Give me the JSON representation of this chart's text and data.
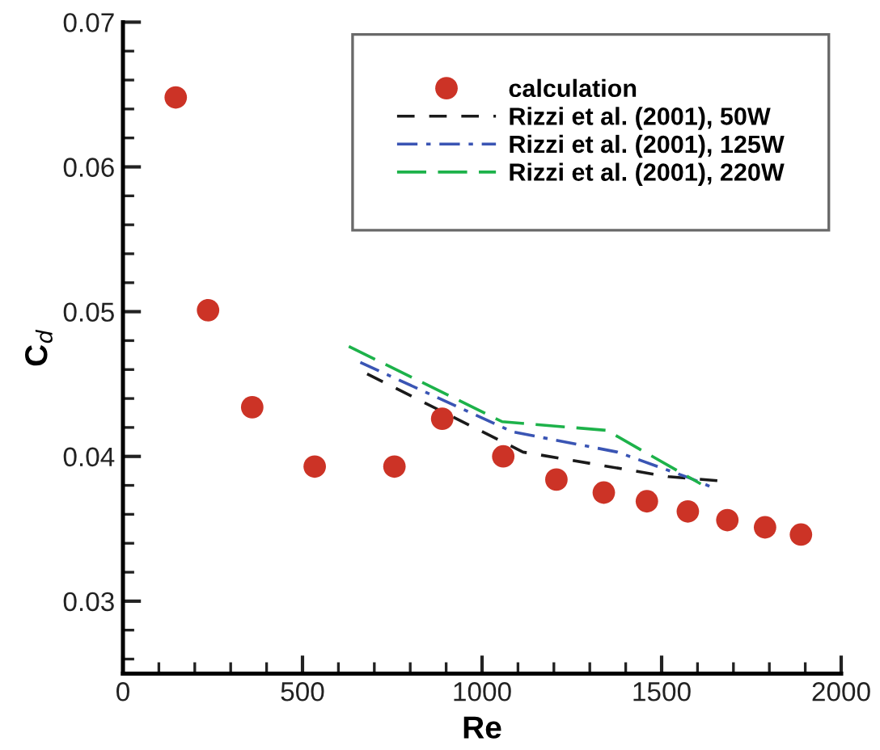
{
  "chart_data": {
    "type": "scatter",
    "xlabel": "Re",
    "ylabel": "C$_{d}$",
    "xlim": [
      0,
      2000
    ],
    "ylim": [
      0.025,
      0.07
    ],
    "xticks": [
      0,
      {
        "value": 100,
        "label": null
      },
      {
        "value": 200,
        "label": null
      },
      {
        "value": 300,
        "label": null
      },
      {
        "value": 400,
        "label": null
      },
      500,
      {
        "value": 600,
        "label": null
      },
      {
        "value": 700,
        "label": null
      },
      {
        "value": 800,
        "label": null
      },
      {
        "value": 900,
        "label": null
      },
      1000,
      {
        "value": 1100,
        "label": null
      },
      {
        "value": 1200,
        "label": null
      },
      {
        "value": 1300,
        "label": null
      },
      {
        "value": 1400,
        "label": null
      },
      1500,
      {
        "value": 1600,
        "label": null
      },
      {
        "value": 1700,
        "label": null
      },
      {
        "value": 1800,
        "label": null
      },
      {
        "value": 1900,
        "label": null
      },
      2000
    ],
    "yticks": [
      {
        "value": 0.026,
        "label": null
      },
      {
        "value": 0.028,
        "label": null
      },
      0.03,
      {
        "value": 0.032,
        "label": null
      },
      {
        "value": 0.034,
        "label": null
      },
      {
        "value": 0.036,
        "label": null
      },
      {
        "value": 0.038,
        "label": null
      },
      0.04,
      {
        "value": 0.042,
        "label": null
      },
      {
        "value": 0.044,
        "label": null
      },
      {
        "value": 0.046,
        "label": null
      },
      {
        "value": 0.048,
        "label": null
      },
      0.05,
      {
        "value": 0.052,
        "label": null
      },
      {
        "value": 0.054,
        "label": null
      },
      {
        "value": 0.056,
        "label": null
      },
      {
        "value": 0.058,
        "label": null
      },
      0.06,
      {
        "value": 0.062,
        "label": null
      },
      {
        "value": 0.064,
        "label": null
      },
      {
        "value": 0.066,
        "label": null
      },
      {
        "value": 0.068,
        "label": null
      },
      0.07
    ],
    "grid": false,
    "legend": "top right",
    "series": [
      {
        "name": "calculation",
        "marker": "circle",
        "color": "#cc3326",
        "x": [
          147,
          237,
          360,
          534,
          756,
          889,
          1059,
          1207,
          1339,
          1459,
          1573,
          1683,
          1788,
          1888
        ],
        "values": [
          0.0648,
          0.0501,
          0.0434,
          0.0393,
          0.0393,
          0.0426,
          0.04,
          0.0384,
          0.0375,
          0.0369,
          0.0362,
          0.0356,
          0.0351,
          0.0346
        ]
      },
      {
        "name": "Rizzi et al. (2001), 50W",
        "type": "line",
        "line_style": "dashed",
        "color": "#1a1a1a",
        "x": [
          680,
          1114,
          1519,
          1669
        ],
        "values": [
          0.0457,
          0.0403,
          0.0386,
          0.0383
        ]
      },
      {
        "name": "Rizzi et al. (2001), 125W",
        "type": "line",
        "line_style": "dashdot",
        "color": "#3a55b4",
        "x": [
          661,
          1085,
          1377,
          1579,
          1647
        ],
        "values": [
          0.0465,
          0.0417,
          0.0403,
          0.0385,
          0.0378
        ]
      },
      {
        "name": "Rizzi et al. (2001), 220W",
        "type": "line",
        "line_style": "longdash",
        "color": "#1db24a",
        "x": [
          629,
          1056,
          1347,
          1609
        ],
        "values": [
          0.0476,
          0.0424,
          0.0418,
          0.0381
        ]
      }
    ]
  }
}
